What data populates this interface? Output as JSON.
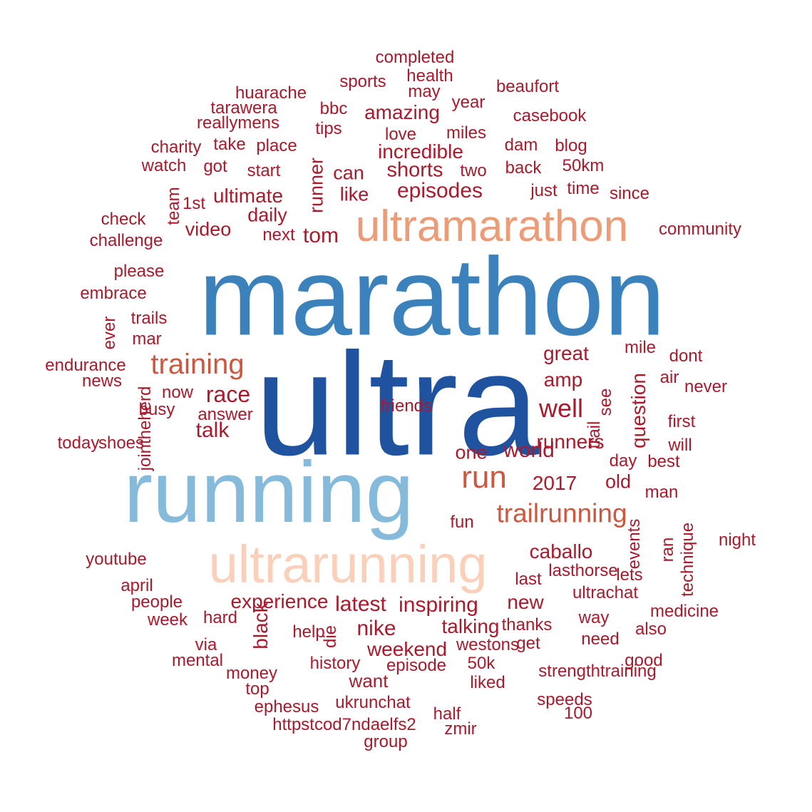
{
  "word_cloud": {
    "colors": {
      "dark_blue": "#1f53a0",
      "mid_blue": "#3b82bc",
      "light_blue": "#86badb",
      "peach": "#fbd0bb",
      "salmon": "#ec9c77",
      "orange_red": "#cc5841",
      "dark_red": "#a81a2c"
    },
    "words": [
      {
        "text": "ultra",
        "color": "dark_blue",
        "vertical": false
      },
      {
        "text": "marathon",
        "color": "mid_blue",
        "vertical": false
      },
      {
        "text": "running",
        "color": "light_blue",
        "vertical": false
      },
      {
        "text": "ultrarunning",
        "color": "peach",
        "vertical": false
      },
      {
        "text": "ultramarathon",
        "color": "salmon",
        "vertical": false
      },
      {
        "text": "training",
        "color": "orange_red",
        "vertical": false
      },
      {
        "text": "run",
        "color": "orange_red",
        "vertical": false
      },
      {
        "text": "trailrunning",
        "color": "orange_red",
        "vertical": false
      },
      {
        "text": "completed",
        "color": "dark_red",
        "vertical": false
      },
      {
        "text": "sports",
        "color": "dark_red",
        "vertical": false
      },
      {
        "text": "health",
        "color": "dark_red",
        "vertical": false
      },
      {
        "text": "may",
        "color": "dark_red",
        "vertical": false
      },
      {
        "text": "huarache",
        "color": "dark_red",
        "vertical": false
      },
      {
        "text": "beaufort",
        "color": "dark_red",
        "vertical": false
      },
      {
        "text": "year",
        "color": "dark_red",
        "vertical": false
      },
      {
        "text": "tarawera",
        "color": "dark_red",
        "vertical": false
      },
      {
        "text": "bbc",
        "color": "dark_red",
        "vertical": false
      },
      {
        "text": "amazing",
        "color": "dark_red",
        "vertical": false
      },
      {
        "text": "casebook",
        "color": "dark_red",
        "vertical": false
      },
      {
        "text": "reallymens",
        "color": "dark_red",
        "vertical": false
      },
      {
        "text": "tips",
        "color": "dark_red",
        "vertical": false
      },
      {
        "text": "love",
        "color": "dark_red",
        "vertical": false
      },
      {
        "text": "miles",
        "color": "dark_red",
        "vertical": false
      },
      {
        "text": "charity",
        "color": "dark_red",
        "vertical": false
      },
      {
        "text": "take",
        "color": "dark_red",
        "vertical": false
      },
      {
        "text": "place",
        "color": "dark_red",
        "vertical": false
      },
      {
        "text": "incredible",
        "color": "dark_red",
        "vertical": false
      },
      {
        "text": "dam",
        "color": "dark_red",
        "vertical": false
      },
      {
        "text": "blog",
        "color": "dark_red",
        "vertical": false
      },
      {
        "text": "watch",
        "color": "dark_red",
        "vertical": false
      },
      {
        "text": "got",
        "color": "dark_red",
        "vertical": false
      },
      {
        "text": "start",
        "color": "dark_red",
        "vertical": false
      },
      {
        "text": "runner",
        "color": "dark_red",
        "vertical": true
      },
      {
        "text": "can",
        "color": "dark_red",
        "vertical": false
      },
      {
        "text": "shorts",
        "color": "dark_red",
        "vertical": false
      },
      {
        "text": "two",
        "color": "dark_red",
        "vertical": false
      },
      {
        "text": "back",
        "color": "dark_red",
        "vertical": false
      },
      {
        "text": "50km",
        "color": "dark_red",
        "vertical": false
      },
      {
        "text": "team",
        "color": "dark_red",
        "vertical": true
      },
      {
        "text": "1st",
        "color": "dark_red",
        "vertical": false
      },
      {
        "text": "ultimate",
        "color": "dark_red",
        "vertical": false
      },
      {
        "text": "like",
        "color": "dark_red",
        "vertical": false
      },
      {
        "text": "episodes",
        "color": "dark_red",
        "vertical": false
      },
      {
        "text": "just",
        "color": "dark_red",
        "vertical": false
      },
      {
        "text": "time",
        "color": "dark_red",
        "vertical": false
      },
      {
        "text": "since",
        "color": "dark_red",
        "vertical": false
      },
      {
        "text": "check",
        "color": "dark_red",
        "vertical": false
      },
      {
        "text": "daily",
        "color": "dark_red",
        "vertical": false
      },
      {
        "text": "video",
        "color": "dark_red",
        "vertical": false
      },
      {
        "text": "next",
        "color": "dark_red",
        "vertical": false
      },
      {
        "text": "tom",
        "color": "dark_red",
        "vertical": false
      },
      {
        "text": "community",
        "color": "dark_red",
        "vertical": false
      },
      {
        "text": "challenge",
        "color": "dark_red",
        "vertical": false
      },
      {
        "text": "please",
        "color": "dark_red",
        "vertical": false
      },
      {
        "text": "embrace",
        "color": "dark_red",
        "vertical": false
      },
      {
        "text": "trails",
        "color": "dark_red",
        "vertical": false
      },
      {
        "text": "ever",
        "color": "dark_red",
        "vertical": true
      },
      {
        "text": "mar",
        "color": "dark_red",
        "vertical": false
      },
      {
        "text": "great",
        "color": "dark_red",
        "vertical": false
      },
      {
        "text": "mile",
        "color": "dark_red",
        "vertical": false
      },
      {
        "text": "dont",
        "color": "dark_red",
        "vertical": false
      },
      {
        "text": "endurance",
        "color": "dark_red",
        "vertical": false
      },
      {
        "text": "news",
        "color": "dark_red",
        "vertical": false
      },
      {
        "text": "amp",
        "color": "dark_red",
        "vertical": false
      },
      {
        "text": "question",
        "color": "dark_red",
        "vertical": true
      },
      {
        "text": "air",
        "color": "dark_red",
        "vertical": false
      },
      {
        "text": "never",
        "color": "dark_red",
        "vertical": false
      },
      {
        "text": "now",
        "color": "dark_red",
        "vertical": false
      },
      {
        "text": "race",
        "color": "dark_red",
        "vertical": false
      },
      {
        "text": "see",
        "color": "dark_red",
        "vertical": true
      },
      {
        "text": "busy",
        "color": "dark_red",
        "vertical": false
      },
      {
        "text": "answer",
        "color": "dark_red",
        "vertical": false
      },
      {
        "text": "well",
        "color": "dark_red",
        "vertical": false
      },
      {
        "text": "first",
        "color": "dark_red",
        "vertical": false
      },
      {
        "text": "today",
        "color": "dark_red",
        "vertical": false
      },
      {
        "text": "jointheherd",
        "color": "dark_red",
        "vertical": true
      },
      {
        "text": "talk",
        "color": "dark_red",
        "vertical": false
      },
      {
        "text": "runners",
        "color": "dark_red",
        "vertical": false
      },
      {
        "text": "trail",
        "color": "dark_red",
        "vertical": true
      },
      {
        "text": "will",
        "color": "dark_red",
        "vertical": false
      },
      {
        "text": "shoes",
        "color": "dark_red",
        "vertical": false
      },
      {
        "text": "world",
        "color": "dark_red",
        "vertical": false
      },
      {
        "text": "one",
        "color": "dark_red",
        "vertical": false
      },
      {
        "text": "day",
        "color": "dark_red",
        "vertical": false
      },
      {
        "text": "best",
        "color": "dark_red",
        "vertical": false
      },
      {
        "text": "old",
        "color": "dark_red",
        "vertical": false
      },
      {
        "text": "2017",
        "color": "dark_red",
        "vertical": false
      },
      {
        "text": "man",
        "color": "dark_red",
        "vertical": false
      },
      {
        "text": "fun",
        "color": "dark_red",
        "vertical": false
      },
      {
        "text": "ran",
        "color": "dark_red",
        "vertical": true
      },
      {
        "text": "technique",
        "color": "dark_red",
        "vertical": true
      },
      {
        "text": "events",
        "color": "dark_red",
        "vertical": true
      },
      {
        "text": "night",
        "color": "dark_red",
        "vertical": false
      },
      {
        "text": "caballo",
        "color": "dark_red",
        "vertical": false
      },
      {
        "text": "youtube",
        "color": "dark_red",
        "vertical": false
      },
      {
        "text": "lasthorse",
        "color": "dark_red",
        "vertical": false
      },
      {
        "text": "lets",
        "color": "dark_red",
        "vertical": false
      },
      {
        "text": "last",
        "color": "dark_red",
        "vertical": false
      },
      {
        "text": "april",
        "color": "dark_red",
        "vertical": false
      },
      {
        "text": "ultrachat",
        "color": "dark_red",
        "vertical": false
      },
      {
        "text": "people",
        "color": "dark_red",
        "vertical": false
      },
      {
        "text": "experience",
        "color": "dark_red",
        "vertical": false
      },
      {
        "text": "latest",
        "color": "dark_red",
        "vertical": false
      },
      {
        "text": "inspiring",
        "color": "dark_red",
        "vertical": false
      },
      {
        "text": "new",
        "color": "dark_red",
        "vertical": false
      },
      {
        "text": "medicine",
        "color": "dark_red",
        "vertical": false
      },
      {
        "text": "week",
        "color": "dark_red",
        "vertical": false
      },
      {
        "text": "hard",
        "color": "dark_red",
        "vertical": false
      },
      {
        "text": "way",
        "color": "dark_red",
        "vertical": false
      },
      {
        "text": "also",
        "color": "dark_red",
        "vertical": false
      },
      {
        "text": "black",
        "color": "dark_red",
        "vertical": true
      },
      {
        "text": "nike",
        "color": "dark_red",
        "vertical": false
      },
      {
        "text": "talking",
        "color": "dark_red",
        "vertical": false
      },
      {
        "text": "thanks",
        "color": "dark_red",
        "vertical": false
      },
      {
        "text": "help",
        "color": "dark_red",
        "vertical": false
      },
      {
        "text": "die",
        "color": "dark_red",
        "vertical": true
      },
      {
        "text": "via",
        "color": "dark_red",
        "vertical": false
      },
      {
        "text": "weekend",
        "color": "dark_red",
        "vertical": false
      },
      {
        "text": "westons",
        "color": "dark_red",
        "vertical": false
      },
      {
        "text": "get",
        "color": "dark_red",
        "vertical": false
      },
      {
        "text": "need",
        "color": "dark_red",
        "vertical": false
      },
      {
        "text": "mental",
        "color": "dark_red",
        "vertical": false
      },
      {
        "text": "history",
        "color": "dark_red",
        "vertical": false
      },
      {
        "text": "episode",
        "color": "dark_red",
        "vertical": false
      },
      {
        "text": "50k",
        "color": "dark_red",
        "vertical": false
      },
      {
        "text": "good",
        "color": "dark_red",
        "vertical": false
      },
      {
        "text": "money",
        "color": "dark_red",
        "vertical": false
      },
      {
        "text": "want",
        "color": "dark_red",
        "vertical": false
      },
      {
        "text": "strengthtraining",
        "color": "dark_red",
        "vertical": false
      },
      {
        "text": "top",
        "color": "dark_red",
        "vertical": false
      },
      {
        "text": "liked",
        "color": "dark_red",
        "vertical": false
      },
      {
        "text": "speeds",
        "color": "dark_red",
        "vertical": false
      },
      {
        "text": "ukrunchat",
        "color": "dark_red",
        "vertical": false
      },
      {
        "text": "ephesus",
        "color": "dark_red",
        "vertical": false
      },
      {
        "text": "half",
        "color": "dark_red",
        "vertical": false
      },
      {
        "text": "100",
        "color": "dark_red",
        "vertical": false
      },
      {
        "text": "httpstcod7ndaelfs2",
        "color": "dark_red",
        "vertical": false
      },
      {
        "text": "zmir",
        "color": "dark_red",
        "vertical": false
      },
      {
        "text": "group",
        "color": "dark_red",
        "vertical": false
      },
      {
        "text": "friends",
        "color": "dark_red",
        "vertical": false
      }
    ]
  }
}
